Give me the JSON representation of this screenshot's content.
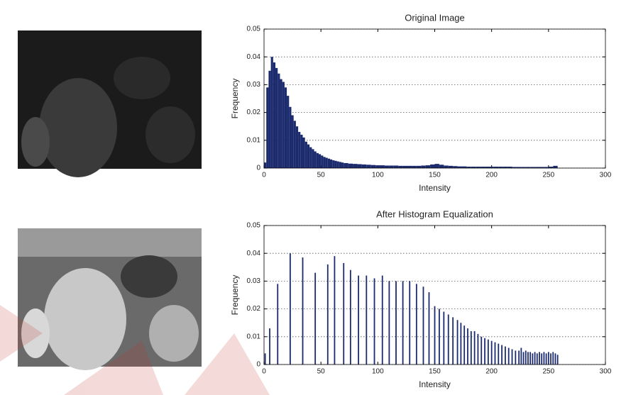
{
  "chart_data": [
    {
      "type": "histogram",
      "title": "Original Image",
      "xlabel": "Intensity",
      "ylabel": "Frequency",
      "bins": [
        0,
        2,
        4,
        6,
        8,
        10,
        12,
        14,
        16,
        18,
        20,
        22,
        24,
        26,
        28,
        30,
        32,
        34,
        36,
        38,
        40,
        42,
        44,
        46,
        48,
        50,
        52,
        54,
        56,
        58,
        60,
        62,
        64,
        66,
        68,
        70,
        74,
        78,
        82,
        86,
        90,
        94,
        98,
        102,
        106,
        110,
        114,
        118,
        122,
        126,
        130,
        134,
        138,
        142,
        146,
        150,
        154,
        158,
        162,
        166,
        170,
        174,
        178,
        182,
        186,
        190,
        194,
        198,
        202,
        206,
        210,
        214,
        218,
        222,
        226,
        230,
        234,
        238,
        242,
        246,
        250,
        254,
        258
      ],
      "counts": [
        0.002,
        0.029,
        0.035,
        0.04,
        0.038,
        0.036,
        0.034,
        0.032,
        0.031,
        0.029,
        0.026,
        0.022,
        0.019,
        0.017,
        0.015,
        0.013,
        0.012,
        0.011,
        0.0095,
        0.0085,
        0.0075,
        0.0068,
        0.006,
        0.0054,
        0.005,
        0.0045,
        0.004,
        0.0037,
        0.0034,
        0.0031,
        0.0028,
        0.0026,
        0.0024,
        0.0022,
        0.002,
        0.0018,
        0.0016,
        0.0015,
        0.0014,
        0.0013,
        0.0012,
        0.0011,
        0.001,
        0.001,
        0.0009,
        0.0009,
        0.0009,
        0.0008,
        0.0008,
        0.0008,
        0.0008,
        0.0008,
        0.0009,
        0.001,
        0.0013,
        0.0015,
        0.0012,
        0.0009,
        0.0008,
        0.0007,
        0.0006,
        0.0006,
        0.0005,
        0.0005,
        0.0005,
        0.0005,
        0.0005,
        0.0005,
        0.0005,
        0.0005,
        0.0005,
        0.0005,
        0.0004,
        0.0004,
        0.0004,
        0.0004,
        0.0004,
        0.0004,
        0.0004,
        0.0004,
        0.0005,
        0.0008
      ],
      "color": "#1c2b6e",
      "xlim": [
        0,
        300
      ],
      "ylim": [
        0,
        0.05
      ],
      "xticks": [
        0,
        50,
        100,
        150,
        200,
        250,
        300
      ],
      "yticks": [
        0,
        0.01,
        0.02,
        0.03,
        0.04,
        0.05
      ],
      "grid": true
    },
    {
      "type": "bar",
      "title": "After Histogram Equalization",
      "xlabel": "Intensity",
      "ylabel": "Frequency",
      "x": [
        1,
        5,
        12,
        23,
        34,
        45,
        56,
        62,
        70,
        76,
        83,
        90,
        97,
        104,
        110,
        116,
        122,
        128,
        134,
        140,
        145,
        150,
        154,
        158,
        162,
        166,
        170,
        173,
        176,
        179,
        182,
        185,
        188,
        191,
        194,
        197,
        200,
        203,
        206,
        209,
        212,
        215,
        218,
        221,
        224,
        226,
        228,
        230,
        232,
        234,
        236,
        238,
        240,
        242,
        244,
        246,
        248,
        250,
        252,
        254,
        256,
        258
      ],
      "values": [
        0.004,
        0.013,
        0.029,
        0.04,
        0.0385,
        0.033,
        0.036,
        0.039,
        0.0365,
        0.034,
        0.032,
        0.032,
        0.031,
        0.032,
        0.03,
        0.03,
        0.03,
        0.03,
        0.029,
        0.028,
        0.026,
        0.021,
        0.02,
        0.019,
        0.018,
        0.017,
        0.016,
        0.015,
        0.014,
        0.013,
        0.012,
        0.012,
        0.011,
        0.01,
        0.0095,
        0.009,
        0.0085,
        0.008,
        0.0075,
        0.007,
        0.0065,
        0.006,
        0.0055,
        0.005,
        0.005,
        0.006,
        0.0045,
        0.005,
        0.0045,
        0.0045,
        0.004,
        0.0045,
        0.004,
        0.0045,
        0.004,
        0.0045,
        0.004,
        0.0045,
        0.004,
        0.0045,
        0.004,
        0.0035
      ],
      "color": "#1c2b6e",
      "xlim": [
        0,
        300
      ],
      "ylim": [
        0,
        0.05
      ],
      "xticks": [
        0,
        50,
        100,
        150,
        200,
        250,
        300
      ],
      "yticks": [
        0,
        0.01,
        0.02,
        0.03,
        0.04,
        0.05
      ],
      "grid": true
    }
  ]
}
